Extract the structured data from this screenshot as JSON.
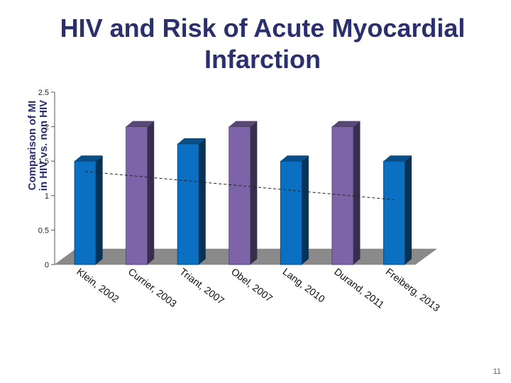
{
  "title_line1": "HIV and Risk of Acute Myocardial",
  "title_line2": "Infarction",
  "ylabel_line1": "Comparison of MI",
  "ylabel_line2": "in HIV vs. non HIV",
  "page_number": "11",
  "colors": {
    "blue": "#0b6fc2",
    "purple": "#7d64a8",
    "floor": "#8a8a8a"
  },
  "chart_data": {
    "type": "bar",
    "categories": [
      "Klein, 2002",
      "Currier, 2003",
      "Triant, 2007",
      "Obel, 2007",
      "Lang, 2010",
      "Durand, 2011",
      "Freiberg, 2013"
    ],
    "values": [
      1.5,
      2.0,
      1.75,
      2.0,
      1.5,
      2.0,
      1.5
    ],
    "bar_colors": [
      "blue",
      "purple",
      "blue",
      "purple",
      "blue",
      "purple",
      "blue"
    ],
    "yticks": [
      0,
      0.5,
      1,
      1.5,
      2,
      2.5
    ],
    "ytick_labels": [
      "0",
      "0.5",
      "1",
      "1.5",
      "2",
      "2.5"
    ],
    "ylim": [
      0,
      2.5
    ],
    "trendline": {
      "type": "linear",
      "start": 1.35,
      "end": 0.94
    },
    "grid": false,
    "legend": "none"
  }
}
